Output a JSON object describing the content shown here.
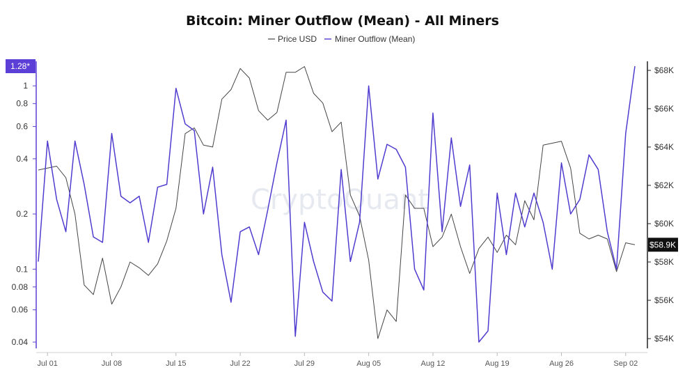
{
  "chart_data": {
    "type": "line",
    "title": "Bitcoin: Miner Outflow (Mean) - All Miners",
    "watermark": "CryptoQuant",
    "legend": {
      "placement": "top-center"
    },
    "x_tick_labels": [
      "Jul 01",
      "Jul 08",
      "Jul 15",
      "Jul 22",
      "Jul 29",
      "Aug 05",
      "Aug 12",
      "Aug 19",
      "Aug 26",
      "Sep 02"
    ],
    "x_start": "2024-06-30",
    "x": [
      "2024-06-30",
      "2024-07-01",
      "2024-07-02",
      "2024-07-03",
      "2024-07-04",
      "2024-07-05",
      "2024-07-06",
      "2024-07-07",
      "2024-07-08",
      "2024-07-09",
      "2024-07-10",
      "2024-07-11",
      "2024-07-12",
      "2024-07-13",
      "2024-07-14",
      "2024-07-15",
      "2024-07-16",
      "2024-07-17",
      "2024-07-18",
      "2024-07-19",
      "2024-07-20",
      "2024-07-21",
      "2024-07-22",
      "2024-07-23",
      "2024-07-24",
      "2024-07-25",
      "2024-07-26",
      "2024-07-27",
      "2024-07-28",
      "2024-07-29",
      "2024-07-30",
      "2024-07-31",
      "2024-08-01",
      "2024-08-02",
      "2024-08-03",
      "2024-08-04",
      "2024-08-05",
      "2024-08-06",
      "2024-08-07",
      "2024-08-08",
      "2024-08-09",
      "2024-08-10",
      "2024-08-11",
      "2024-08-12",
      "2024-08-13",
      "2024-08-14",
      "2024-08-15",
      "2024-08-16",
      "2024-08-17",
      "2024-08-18",
      "2024-08-19",
      "2024-08-20",
      "2024-08-21",
      "2024-08-22",
      "2024-08-23",
      "2024-08-24",
      "2024-08-25",
      "2024-08-26",
      "2024-08-27",
      "2024-08-28",
      "2024-08-29",
      "2024-08-30",
      "2024-08-31",
      "2024-09-01",
      "2024-09-02",
      "2024-09-03"
    ],
    "left_axis": {
      "scale": "log",
      "range": [
        0.036,
        1.33
      ],
      "ticks": [
        0.04,
        0.06,
        0.08,
        0.1,
        0.2,
        0.4,
        0.6,
        0.8,
        1
      ],
      "tick_labels": [
        "0.04",
        "0.06",
        "0.08",
        "0.1",
        "0.2",
        "0.4",
        "0.6",
        "0.8",
        "1"
      ],
      "current_label": "1.28*",
      "current_value": 1.28,
      "current_color": "#5b3fd6"
    },
    "right_axis": {
      "range": [
        53500,
        69000
      ],
      "ticks": [
        54000,
        56000,
        58000,
        60000,
        62000,
        64000,
        66000,
        68000
      ],
      "tick_labels": [
        "$54K",
        "$56K",
        "$58K",
        "$60K",
        "$62K",
        "$64K",
        "$66K",
        "$68K"
      ],
      "current_label": "$58.9K",
      "current_value": 58900,
      "current_color": "#111111"
    },
    "series": [
      {
        "name": "Price USD",
        "axis": "right",
        "color": "#444444",
        "values": [
          62800,
          62900,
          63000,
          62400,
          60500,
          56800,
          56300,
          58200,
          55800,
          56700,
          58000,
          57700,
          57300,
          57900,
          59100,
          60800,
          64700,
          65000,
          64100,
          64000,
          66500,
          67000,
          68100,
          67600,
          65900,
          65400,
          65800,
          67900,
          67900,
          68200,
          66800,
          66300,
          64800,
          65300,
          61500,
          60400,
          58100,
          54000,
          55500,
          54900,
          61500,
          60800,
          60800,
          58800,
          59300,
          60500,
          58800,
          57400,
          58700,
          59300,
          58500,
          59400,
          58900,
          61200,
          60200,
          64100,
          64200,
          64300,
          62900,
          59500,
          59200,
          59400,
          59200,
          57500,
          59000,
          58900
        ]
      },
      {
        "name": "Miner Outflow (Mean)",
        "axis": "left",
        "color": "#4f3ccf",
        "values": [
          0.11,
          0.5,
          0.24,
          0.16,
          0.5,
          0.29,
          0.15,
          0.14,
          0.55,
          0.25,
          0.23,
          0.25,
          0.14,
          0.28,
          0.29,
          0.97,
          0.62,
          0.57,
          0.2,
          0.36,
          0.12,
          0.066,
          0.16,
          0.17,
          0.12,
          0.21,
          0.38,
          0.65,
          0.043,
          0.18,
          0.11,
          0.075,
          0.067,
          0.35,
          0.11,
          0.18,
          1.0,
          0.31,
          0.48,
          0.45,
          0.36,
          0.1,
          0.077,
          0.71,
          0.16,
          0.52,
          0.22,
          0.37,
          0.04,
          0.046,
          0.26,
          0.12,
          0.26,
          0.17,
          0.26,
          0.18,
          0.1,
          0.38,
          0.2,
          0.24,
          0.42,
          0.35,
          0.16,
          0.1,
          0.55,
          1.28
        ]
      }
    ]
  }
}
